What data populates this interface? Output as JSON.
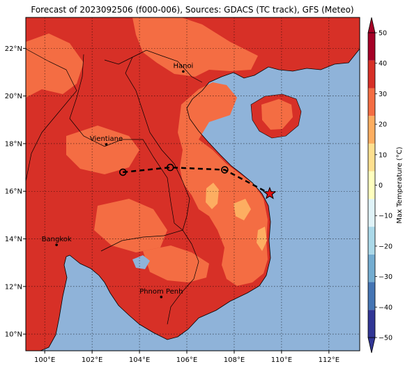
{
  "title": "Forecast of 2023092506 (f000-006), Sources: GDACS (TC track), GFS (Meteo)",
  "map": {
    "lon_range": [
      99.2,
      113.3
    ],
    "lat_range": [
      9.3,
      23.3
    ],
    "lon_ticks": [
      {
        "value": 100,
        "label": "100°E"
      },
      {
        "value": 102,
        "label": "102°E"
      },
      {
        "value": 104,
        "label": "104°E"
      },
      {
        "value": 106,
        "label": "106°E"
      },
      {
        "value": 108,
        "label": "108°E"
      },
      {
        "value": 110,
        "label": "110°E"
      },
      {
        "value": 112,
        "label": "112°E"
      }
    ],
    "lat_ticks": [
      {
        "value": 10,
        "label": "10°N"
      },
      {
        "value": 12,
        "label": "12°N"
      },
      {
        "value": 14,
        "label": "14°N"
      },
      {
        "value": 16,
        "label": "16°N"
      },
      {
        "value": 18,
        "label": "18°N"
      },
      {
        "value": 20,
        "label": "20°N"
      },
      {
        "value": 22,
        "label": "22°N"
      }
    ],
    "cities": [
      {
        "name": "Hanoi",
        "lon": 105.85,
        "lat": 21.03
      },
      {
        "name": "Vientiane",
        "lon": 102.6,
        "lat": 17.97
      },
      {
        "name": "Bangkok",
        "lon": 100.5,
        "lat": 13.75
      },
      {
        "name": "Phnom Penh",
        "lon": 104.92,
        "lat": 11.56
      }
    ],
    "track": {
      "points": [
        {
          "lon": 103.3,
          "lat": 16.8,
          "symbol": "circle"
        },
        {
          "lon": 105.3,
          "lat": 17.0,
          "symbol": "circle"
        },
        {
          "lon": 107.6,
          "lat": 16.9,
          "symbol": "circle"
        },
        {
          "lon": 109.5,
          "lat": 15.9,
          "symbol": "star"
        }
      ],
      "line_color": "#000000",
      "star_color": "#e01010"
    },
    "colors": {
      "ocean": "#8fb3d9",
      "land_hot": "#d73027",
      "land_warm": "#f46d43",
      "land_mild": "#fdae61"
    }
  },
  "colorbar": {
    "label": "Max Temperature (°C)",
    "ticks": [
      -50,
      -40,
      -30,
      -20,
      -10,
      0,
      10,
      20,
      30,
      40,
      50
    ],
    "colors": [
      "#313695",
      "#4575b4",
      "#74add1",
      "#abd9e9",
      "#e0f3f8",
      "#ffffbf",
      "#fee090",
      "#fdae61",
      "#f46d43",
      "#d73027",
      "#a50026"
    ]
  }
}
